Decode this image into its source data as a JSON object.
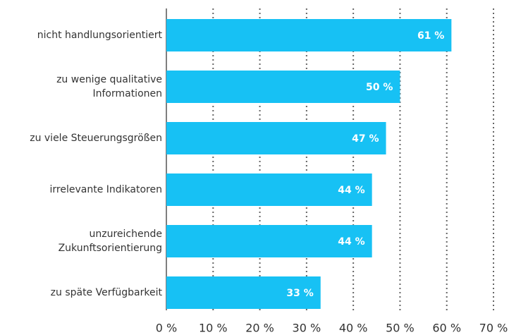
{
  "chart_data": {
    "type": "bar",
    "orientation": "horizontal",
    "categories": [
      "nicht handlungsorientiert",
      "zu wenige qualitative\nInformationen",
      "zu viele Steuerungsgrößen",
      "irrelevante Indikatoren",
      "unzureichende\nZukunftsorientierung",
      "zu späte Verfügbarkeit"
    ],
    "values": [
      61,
      50,
      47,
      44,
      44,
      33
    ],
    "value_labels": [
      "61 %",
      "50 %",
      "47 %",
      "44 %",
      "44 %",
      "33 %"
    ],
    "color": "#17c1f4",
    "xlim": [
      0,
      70
    ],
    "xticks": [
      {
        "value": 0,
        "label": "0 %"
      },
      {
        "value": 10,
        "label": "10 %"
      },
      {
        "value": 20,
        "label": "20 %"
      },
      {
        "value": 30,
        "label": "30 %"
      },
      {
        "value": 40,
        "label": "40 %"
      },
      {
        "value": 50,
        "label": "50 %"
      },
      {
        "value": 60,
        "label": "60 %"
      },
      {
        "value": 70,
        "label": "70 %"
      }
    ],
    "grid": true
  }
}
